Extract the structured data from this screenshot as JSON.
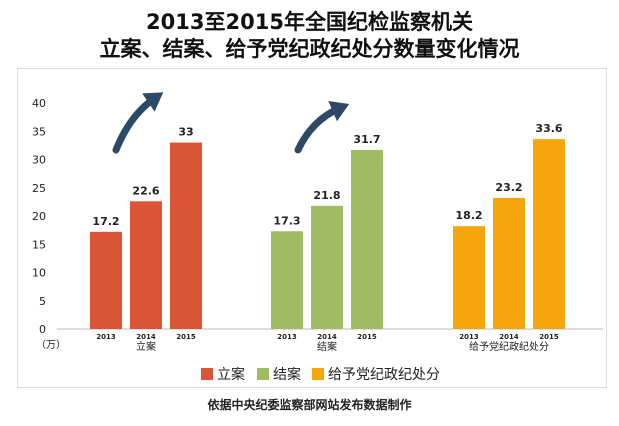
{
  "title_line1": "2013至2015年全国纪检监察机关",
  "title_line2": "立案、结案、给予党纪政纪处分数量变化情况",
  "source": "依据中央纪委监察部网站发布数据制作",
  "chart_data": {
    "type": "bar",
    "unit_label": "（万）",
    "ylim": [
      0,
      40
    ],
    "yticks": [
      0,
      5,
      10,
      15,
      20,
      25,
      30,
      35,
      40
    ],
    "years": [
      "2013",
      "2014",
      "2015"
    ],
    "groups": [
      {
        "name": "立案",
        "color": "#d95535",
        "values": [
          17.2,
          22.6,
          33
        ],
        "labels": [
          "17.2",
          "22.6",
          "33"
        ]
      },
      {
        "name": "结案",
        "color": "#9fbb63",
        "values": [
          17.3,
          21.8,
          31.7
        ],
        "labels": [
          "17.3",
          "21.8",
          "31.7"
        ]
      },
      {
        "name": "给予党纪政纪处分",
        "color": "#f5a60d",
        "values": [
          18.2,
          23.2,
          33.6
        ],
        "labels": [
          "18.2",
          "23.2",
          "33.6"
        ]
      }
    ],
    "legend": [
      "立案",
      "结案",
      "给予党纪政纪处分"
    ],
    "arrow_color": "#2c4a64"
  }
}
